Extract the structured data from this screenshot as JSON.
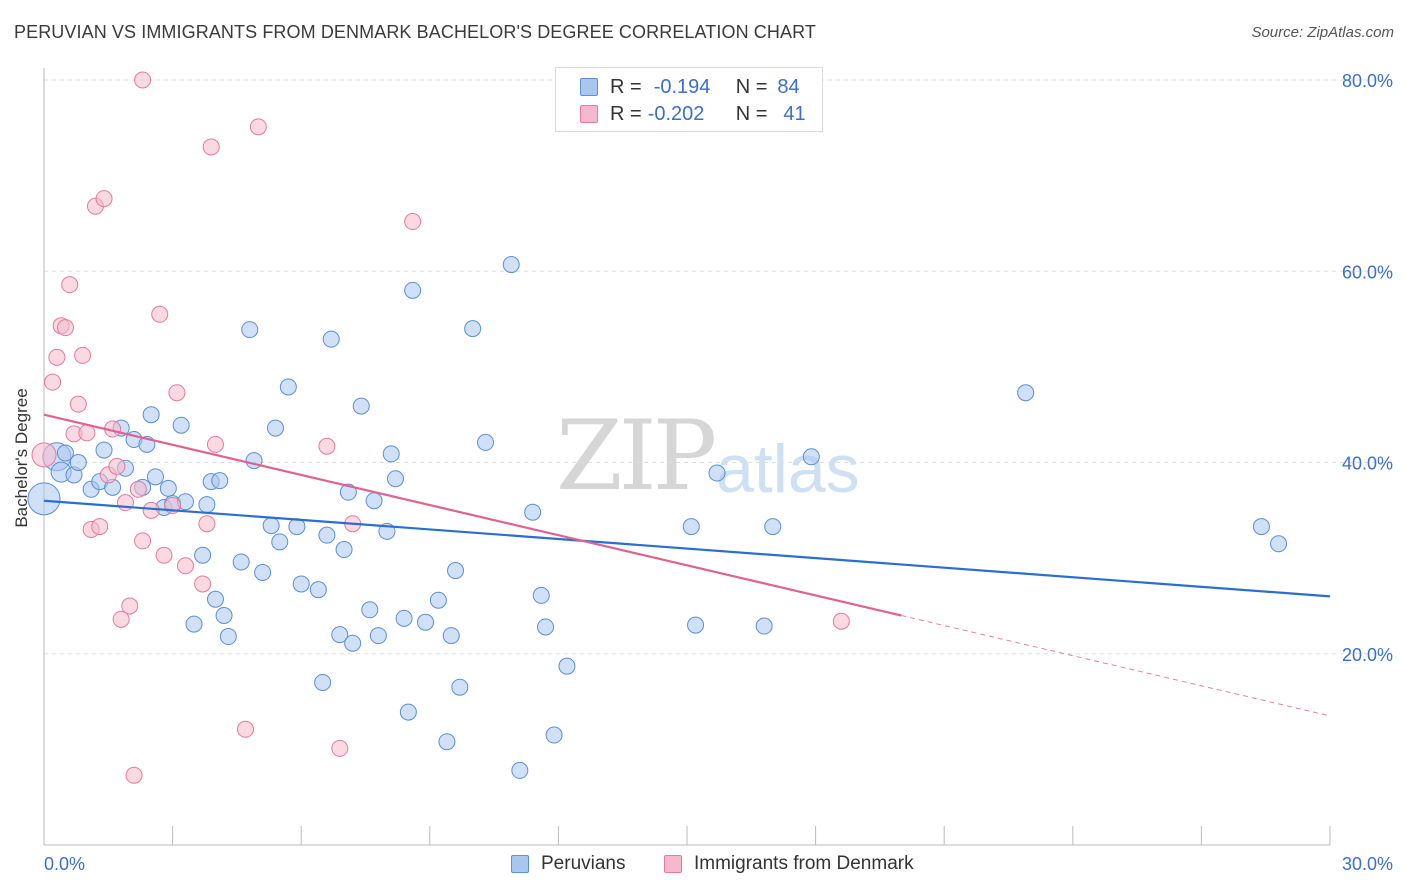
{
  "header": {
    "title": "PERUVIAN VS IMMIGRANTS FROM DENMARK BACHELOR'S DEGREE CORRELATION CHART",
    "source": "Source: ZipAtlas.com"
  },
  "legend": {
    "rows": [
      {
        "r_label": "R =",
        "r_value": "-0.194",
        "n_label": "N =",
        "n_value": "84"
      },
      {
        "r_label": "R =",
        "r_value": "-0.202",
        "n_label": "N =",
        "n_value": "41"
      }
    ]
  },
  "watermark": {
    "zip": "ZIP",
    "atlas": "atlas"
  },
  "colors": {
    "blue_fill": "#a9c7ee",
    "blue_stroke": "#5b8fd6",
    "blue_line": "#2a6fcf",
    "pink_fill": "#f6b9cc",
    "pink_stroke": "#e57a9e",
    "pink_line": "#e0628f",
    "axis_text": "#3b6fc9",
    "grid": "#dddddd"
  },
  "chart_data": {
    "type": "scatter",
    "title": "PERUVIAN VS IMMIGRANTS FROM DENMARK BACHELOR'S DEGREE CORRELATION CHART",
    "xlabel": "",
    "ylabel": "Bachelor's Degree",
    "xlim": [
      0,
      30
    ],
    "ylim": [
      0,
      80
    ],
    "x_tick_labels": [
      "0.0%",
      "30.0%"
    ],
    "y_ticks": [
      20,
      40,
      60,
      80
    ],
    "y_tick_labels": [
      "20.0%",
      "40.0%",
      "60.0%",
      "80.0%"
    ],
    "grid": true,
    "legend_position": "top-center",
    "series": [
      {
        "name": "Peruvians",
        "r": -0.194,
        "n": 84,
        "trend": {
          "x": [
            0,
            30
          ],
          "y": [
            36.0,
            26.0
          ],
          "style": "solid"
        },
        "points": [
          [
            0.0,
            36.2,
            16
          ],
          [
            0.3,
            40.6,
            14
          ],
          [
            0.4,
            39.0,
            10
          ],
          [
            0.5,
            41.0,
            8
          ],
          [
            0.7,
            38.7,
            8
          ],
          [
            0.8,
            40.0,
            8
          ],
          [
            1.1,
            37.2,
            8
          ],
          [
            1.3,
            38.0,
            8
          ],
          [
            1.4,
            41.3,
            8
          ],
          [
            1.6,
            37.4,
            8
          ],
          [
            1.8,
            43.6,
            8
          ],
          [
            1.9,
            39.4,
            8
          ],
          [
            2.1,
            42.4,
            8
          ],
          [
            2.3,
            37.4,
            8
          ],
          [
            2.4,
            41.9,
            8
          ],
          [
            2.5,
            45.0,
            8
          ],
          [
            2.6,
            38.5,
            8
          ],
          [
            2.8,
            35.3,
            8
          ],
          [
            2.9,
            37.3,
            8
          ],
          [
            3.0,
            35.7,
            8
          ],
          [
            3.2,
            43.9,
            8
          ],
          [
            3.3,
            35.9,
            8
          ],
          [
            3.5,
            23.1,
            8
          ],
          [
            3.7,
            30.3,
            8
          ],
          [
            3.8,
            35.6,
            8
          ],
          [
            3.9,
            38.0,
            8
          ],
          [
            4.0,
            25.7,
            8
          ],
          [
            4.1,
            38.1,
            8
          ],
          [
            4.2,
            24.0,
            8
          ],
          [
            4.3,
            21.8,
            8
          ],
          [
            4.6,
            29.6,
            8
          ],
          [
            4.8,
            53.9,
            8
          ],
          [
            4.9,
            40.2,
            8
          ],
          [
            5.1,
            28.5,
            8
          ],
          [
            5.3,
            33.4,
            8
          ],
          [
            5.4,
            43.6,
            8
          ],
          [
            5.5,
            31.7,
            8
          ],
          [
            5.7,
            47.9,
            8
          ],
          [
            5.9,
            33.3,
            8
          ],
          [
            6.0,
            27.3,
            8
          ],
          [
            6.4,
            26.7,
            8
          ],
          [
            6.5,
            17.0,
            8
          ],
          [
            6.6,
            32.4,
            8
          ],
          [
            6.7,
            52.9,
            8
          ],
          [
            6.9,
            22.0,
            8
          ],
          [
            7.0,
            30.9,
            8
          ],
          [
            7.1,
            36.9,
            8
          ],
          [
            7.2,
            21.1,
            8
          ],
          [
            7.4,
            45.9,
            8
          ],
          [
            7.6,
            24.6,
            8
          ],
          [
            7.7,
            36.0,
            8
          ],
          [
            7.8,
            21.9,
            8
          ],
          [
            8.0,
            32.8,
            8
          ],
          [
            8.1,
            40.9,
            8
          ],
          [
            8.2,
            38.3,
            8
          ],
          [
            8.4,
            23.7,
            8
          ],
          [
            8.5,
            13.9,
            8
          ],
          [
            8.6,
            58.0,
            8
          ],
          [
            8.9,
            23.3,
            8
          ],
          [
            9.2,
            25.6,
            8
          ],
          [
            9.4,
            10.8,
            8
          ],
          [
            9.5,
            21.9,
            8
          ],
          [
            9.6,
            28.7,
            8
          ],
          [
            9.7,
            16.5,
            8
          ],
          [
            10.0,
            54.0,
            8
          ],
          [
            10.3,
            42.1,
            8
          ],
          [
            10.9,
            60.7,
            8
          ],
          [
            11.1,
            7.8,
            8
          ],
          [
            11.4,
            34.8,
            8
          ],
          [
            11.6,
            26.1,
            8
          ],
          [
            11.7,
            22.8,
            8
          ],
          [
            11.9,
            11.5,
            8
          ],
          [
            12.2,
            18.7,
            8
          ],
          [
            15.1,
            33.3,
            8
          ],
          [
            15.2,
            23.0,
            8
          ],
          [
            15.7,
            38.9,
            8
          ],
          [
            16.8,
            22.9,
            8
          ],
          [
            17.0,
            33.3,
            8
          ],
          [
            17.9,
            40.6,
            8
          ],
          [
            22.9,
            47.3,
            8
          ],
          [
            28.4,
            33.3,
            8
          ],
          [
            28.8,
            31.5,
            8
          ]
        ]
      },
      {
        "name": "Immigrants from Denmark",
        "r": -0.202,
        "n": 41,
        "trend": {
          "x": [
            0,
            20
          ],
          "y": [
            45.0,
            24.0
          ],
          "style": "solid",
          "dashed_extension": {
            "x": [
              20,
              30
            ],
            "y": [
              24.0,
              13.5
            ]
          }
        },
        "points": [
          [
            0.0,
            40.8,
            12
          ],
          [
            0.2,
            48.4,
            8
          ],
          [
            0.3,
            51.0,
            8
          ],
          [
            0.4,
            54.3,
            8
          ],
          [
            0.5,
            54.1,
            8
          ],
          [
            0.6,
            58.6,
            8
          ],
          [
            0.7,
            43.0,
            8
          ],
          [
            0.8,
            46.1,
            8
          ],
          [
            0.9,
            51.2,
            8
          ],
          [
            1.0,
            43.1,
            8
          ],
          [
            1.1,
            33.0,
            8
          ],
          [
            1.2,
            66.8,
            8
          ],
          [
            1.3,
            33.3,
            8
          ],
          [
            1.4,
            67.6,
            8
          ],
          [
            1.5,
            38.7,
            8
          ],
          [
            1.6,
            43.5,
            8
          ],
          [
            1.7,
            39.6,
            8
          ],
          [
            1.8,
            23.6,
            8
          ],
          [
            1.9,
            35.8,
            8
          ],
          [
            2.0,
            25.0,
            8
          ],
          [
            2.1,
            7.3,
            8
          ],
          [
            2.2,
            37.2,
            8
          ],
          [
            2.3,
            31.8,
            8
          ],
          [
            2.3,
            80.0,
            8
          ],
          [
            2.5,
            35.0,
            8
          ],
          [
            2.7,
            55.5,
            8
          ],
          [
            2.8,
            30.3,
            8
          ],
          [
            3.0,
            35.5,
            8
          ],
          [
            3.1,
            47.3,
            8
          ],
          [
            3.3,
            29.2,
            8
          ],
          [
            3.7,
            27.3,
            8
          ],
          [
            3.8,
            33.6,
            8
          ],
          [
            3.9,
            73.0,
            8
          ],
          [
            4.0,
            41.9,
            8
          ],
          [
            4.7,
            12.1,
            8
          ],
          [
            5.0,
            75.1,
            8
          ],
          [
            6.6,
            41.7,
            8
          ],
          [
            6.9,
            10.1,
            8
          ],
          [
            7.2,
            33.6,
            8
          ],
          [
            8.6,
            65.2,
            8
          ],
          [
            18.6,
            23.4,
            8
          ]
        ]
      }
    ]
  },
  "bottom_legend": [
    {
      "label": "Peruvians"
    },
    {
      "label": "Immigrants from Denmark"
    }
  ]
}
